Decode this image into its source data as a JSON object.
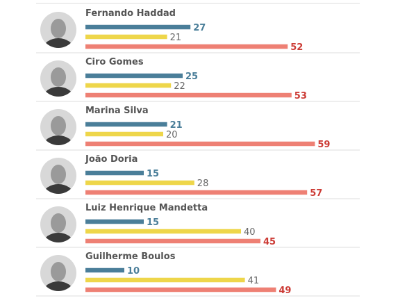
{
  "chart_data": {
    "type": "bar",
    "orientation": "horizontal",
    "grouped_by": "candidate",
    "series": [
      {
        "color": "#4a7e99",
        "values": [
          27,
          25,
          21,
          15,
          15,
          10
        ]
      },
      {
        "color": "#eed64a",
        "values": [
          21,
          22,
          20,
          28,
          40,
          41
        ]
      },
      {
        "color": "#ee8074",
        "values": [
          52,
          53,
          59,
          57,
          45,
          49
        ]
      }
    ],
    "categories": [
      "Fernando Haddad",
      "Ciro Gomes",
      "Marina Silva",
      "João Doria",
      "Luiz Henrique Mandetta",
      "Guilherme Boulos"
    ],
    "xlim": [
      0,
      100
    ],
    "grid": false,
    "legend": "none"
  },
  "photos": [
    {
      "icon": "portrait-photo"
    },
    {
      "icon": "portrait-photo"
    },
    {
      "icon": "portrait-photo"
    },
    {
      "icon": "portrait-photo"
    },
    {
      "icon": "portrait-photo"
    },
    {
      "icon": "portrait-photo"
    }
  ]
}
